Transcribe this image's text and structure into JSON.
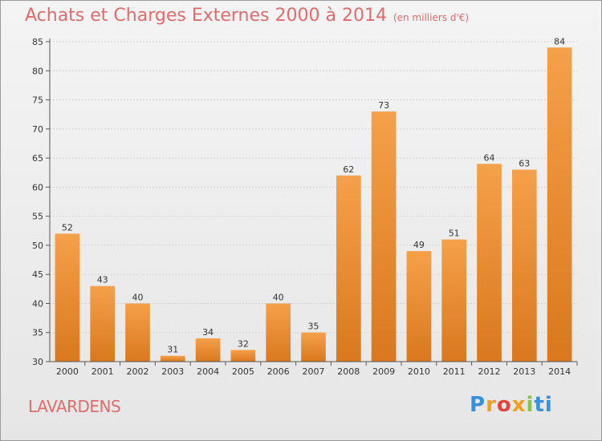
{
  "chart_data": {
    "type": "bar",
    "title": "Achats et Charges Externes 2000 à 2014",
    "unit": "(en milliers d'€)",
    "categories": [
      "2000",
      "2001",
      "2002",
      "2003",
      "2004",
      "2005",
      "2006",
      "2007",
      "2008",
      "2009",
      "2010",
      "2011",
      "2012",
      "2013",
      "2014"
    ],
    "values": [
      52,
      43,
      40,
      31,
      34,
      32,
      40,
      35,
      62,
      73,
      49,
      51,
      64,
      63,
      84
    ],
    "ylim": [
      30,
      85
    ],
    "yticks": [
      30,
      35,
      40,
      45,
      50,
      55,
      60,
      65,
      70,
      75,
      80,
      85
    ],
    "grid": true,
    "bar_color_top": "#f5a04a",
    "bar_color_bottom": "#d9781e"
  },
  "footer": {
    "place": "LAVARDENS",
    "logo_letters": [
      "P",
      "r",
      "o",
      "x",
      "i",
      "ti"
    ]
  },
  "colors": {
    "title": "#e06b6b",
    "place": "#e06b6b"
  }
}
